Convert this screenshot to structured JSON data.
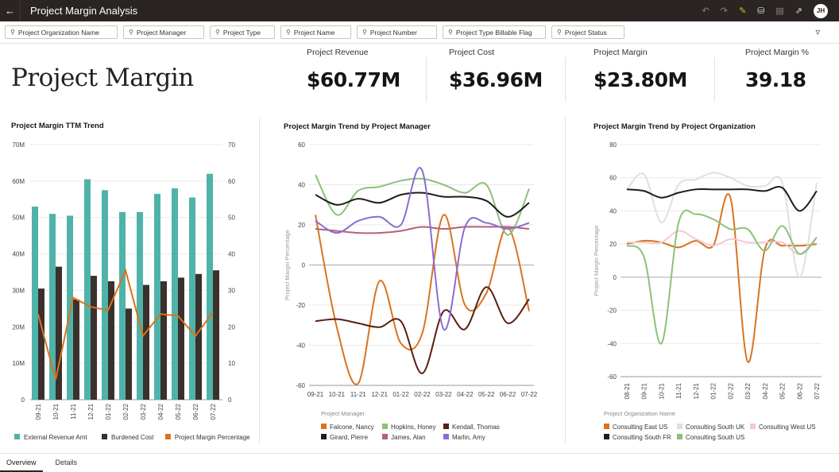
{
  "header": {
    "title": "Project Margin Analysis",
    "avatar": "JH",
    "icons": [
      "back-arrow-icon",
      "undo-icon",
      "redo-icon",
      "edit-icon",
      "data-icon",
      "comment-icon",
      "present-icon"
    ]
  },
  "filters": [
    "Project Organization Name",
    "Project Manager",
    "Project Type",
    "Project Name",
    "Project Number",
    "Project Type Billable Flag",
    "Project Status"
  ],
  "page_title": "Project Margin",
  "kpis": [
    {
      "label": "Project Revenue",
      "value": "$60.77M"
    },
    {
      "label": "Project Cost",
      "value": "$36.96M"
    },
    {
      "label": "Project Margin",
      "value": "$23.80M"
    },
    {
      "label": "Project Margin %",
      "value": "39.18"
    }
  ],
  "tabs": [
    "Overview",
    "Details"
  ],
  "chart_data": [
    {
      "type": "bar",
      "title": "Project Margin TTM Trend",
      "categories": [
        "09-21",
        "10-21",
        "11-21",
        "12-21",
        "01-22",
        "02-22",
        "03-22",
        "04-22",
        "05-22",
        "06-22",
        "07-22"
      ],
      "y_ticks": [
        "0",
        "10M",
        "20M",
        "30M",
        "40M",
        "50M",
        "60M",
        "70M"
      ],
      "y2_ticks": [
        "0",
        "10",
        "20",
        "30",
        "40",
        "50",
        "60",
        "70"
      ],
      "ylim": [
        0,
        70
      ],
      "y2lim": [
        0,
        70
      ],
      "grid": true,
      "legend": "bottom",
      "series": [
        {
          "name": "External Revenue Amt",
          "kind": "bar",
          "color": "#4fb3a9",
          "values": [
            53,
            51,
            50.5,
            60.5,
            57.5,
            51.5,
            51.5,
            56.5,
            58,
            55.5,
            62
          ]
        },
        {
          "name": "Burdened Cost",
          "kind": "bar",
          "color": "#3a302c",
          "values": [
            30.5,
            36.5,
            27.5,
            34,
            32.5,
            25,
            31.5,
            32.5,
            33.5,
            34.5,
            35.5
          ]
        },
        {
          "name": "Project Margin Percentage",
          "kind": "line",
          "axis": "y2",
          "color": "#d9731d",
          "values": [
            23.5,
            5.5,
            28,
            25.5,
            24.5,
            35.5,
            17.5,
            23.5,
            23,
            17.5,
            24
          ]
        }
      ]
    },
    {
      "type": "line",
      "title": "Project Margin Trend by Project Manager",
      "ylabel": "Project Margin Percentage",
      "legend_title": "Project Manager",
      "categories": [
        "09-21",
        "10-21",
        "11-21",
        "12-21",
        "01-22",
        "02-22",
        "03-22",
        "04-22",
        "05-22",
        "06-22",
        "07-22"
      ],
      "y_ticks": [
        "-60",
        "-40",
        "-20",
        "0",
        "20",
        "40",
        "60"
      ],
      "ylim": [
        -60,
        60
      ],
      "grid": true,
      "legend": "bottom",
      "series": [
        {
          "name": "Falcone, Nancy",
          "color": "#d9731d",
          "values": [
            25,
            -31,
            -59,
            -8,
            -39,
            -34,
            25,
            -20,
            -14,
            19,
            -23
          ]
        },
        {
          "name": "Hopkins, Honey",
          "color": "#8cc17a",
          "values": [
            45,
            25,
            37,
            39,
            42,
            43,
            40,
            36,
            40,
            15,
            38
          ]
        },
        {
          "name": "Kendall, Thomas",
          "color": "#5a1e12",
          "values": [
            -28,
            -27,
            -29,
            -31,
            -28,
            -54,
            -23,
            -32,
            -11,
            -29,
            -17
          ]
        },
        {
          "name": "Girard, Pierre",
          "color": "#1f1c1a",
          "values": [
            35,
            30,
            33,
            31,
            35,
            36,
            34,
            34,
            32,
            24,
            31
          ]
        },
        {
          "name": "James, Alan",
          "color": "#b5607a",
          "values": [
            18,
            17,
            16,
            16,
            17,
            19,
            18,
            19,
            19,
            19,
            18
          ]
        },
        {
          "name": "Marlin, Amy",
          "color": "#8c6bd1",
          "values": [
            22,
            16,
            22,
            24,
            20,
            47,
            -32,
            19,
            21,
            18,
            21
          ]
        }
      ]
    },
    {
      "type": "line",
      "title": "Project Margin Trend by Project Organization",
      "ylabel": "Project Margin Percentage",
      "legend_title": "Project Organization Name",
      "categories": [
        "08-21",
        "09-21",
        "10-21",
        "11-21",
        "12-21",
        "01-22",
        "02-22",
        "03-22",
        "04-22",
        "05-22",
        "06-22",
        "07-22"
      ],
      "y_ticks": [
        "-60",
        "-40",
        "-20",
        "0",
        "20",
        "40",
        "60",
        "80"
      ],
      "ylim": [
        -60,
        80
      ],
      "grid": true,
      "legend": "bottom",
      "series": [
        {
          "name": "Consulting East US",
          "color": "#d9731d",
          "values": [
            20,
            22,
            21,
            18,
            22,
            19,
            48,
            -51,
            17,
            19,
            19,
            20
          ]
        },
        {
          "name": "Consulting South UK",
          "color": "#e2dfdc",
          "values": [
            53,
            62,
            33,
            56,
            59,
            63,
            60,
            55,
            55,
            57,
            0,
            57
          ]
        },
        {
          "name": "Consulting West US",
          "color": "#f3c9d3",
          "values": [
            21,
            21,
            21,
            28,
            23,
            19,
            23,
            21,
            21,
            21,
            14,
            24
          ]
        },
        {
          "name": "Consulting South FR",
          "color": "#1f1c1a",
          "values": [
            53,
            52,
            48,
            51,
            53,
            53,
            53,
            53,
            52,
            54,
            40,
            52
          ]
        },
        {
          "name": "Consulting South US",
          "color": "#8cc17a",
          "values": [
            19,
            12,
            -40,
            33,
            38,
            35,
            29,
            29,
            16,
            31,
            14,
            24
          ]
        }
      ]
    }
  ]
}
